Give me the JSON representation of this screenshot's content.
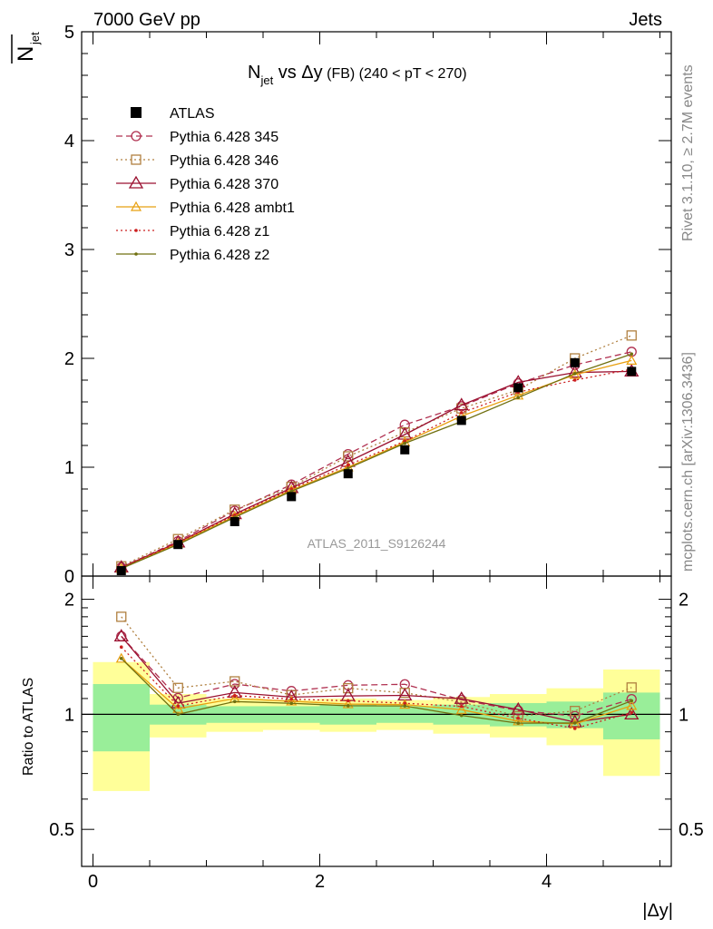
{
  "header": {
    "left": "7000 GeV pp",
    "right": "Jets"
  },
  "side_labels": {
    "rivet": "Rivet 3.1.10, ≥ 2.7M events",
    "mcplots": "mcplots.cern.ch [arXiv:1306.3436]"
  },
  "watermark": "ATLAS_2011_S9126244",
  "chart_data": {
    "type": "line",
    "title_main": "N",
    "title_sub": "jet",
    "title_mid": " vs Δy",
    "title_small": " (FB)",
    "title_tail": " (240 < pT < 270)",
    "ylabel_main": "N",
    "ylabel_sub": "jet",
    "xlabel": "|Δy|",
    "ratio_ylabel": "Ratio to ATLAS",
    "xlim": [
      -0.1,
      5.1
    ],
    "ylim": [
      0,
      5
    ],
    "ratio_ylim": [
      0.4,
      2.3
    ],
    "x_ticks": [
      "0",
      "2",
      "4"
    ],
    "y_ticks": [
      "0",
      "1",
      "2",
      "3",
      "4",
      "5"
    ],
    "ratio_ticks": [
      "0.5",
      "1",
      "2"
    ],
    "x": [
      0.25,
      0.75,
      1.25,
      1.75,
      2.25,
      2.75,
      3.25,
      3.75,
      4.25,
      4.75
    ],
    "bin_edges": [
      0,
      0.5,
      1,
      1.5,
      2,
      2.5,
      3,
      3.5,
      4,
      4.5,
      5
    ],
    "data": {
      "name": "ATLAS",
      "values": [
        0.05,
        0.29,
        0.5,
        0.73,
        0.94,
        1.16,
        1.43,
        1.73,
        1.96,
        1.88
      ],
      "band_green": [
        0.2,
        0.06,
        0.05,
        0.05,
        0.06,
        0.05,
        0.06,
        0.07,
        0.08,
        0.14
      ],
      "band_yellow": [
        0.37,
        0.13,
        0.1,
        0.09,
        0.1,
        0.09,
        0.11,
        0.13,
        0.17,
        0.31
      ]
    },
    "series": [
      {
        "name": "Pythia 6.428 345",
        "color": "#b03050",
        "dash": "7,4",
        "marker": "circle",
        "values": [
          0.08,
          0.32,
          0.6,
          0.84,
          1.12,
          1.39,
          1.56,
          1.77,
          1.94,
          2.06
        ]
      },
      {
        "name": "Pythia 6.428 346",
        "color": "#b08040",
        "dash": "2,3",
        "marker": "square",
        "values": [
          0.09,
          0.34,
          0.61,
          0.82,
          1.1,
          1.32,
          1.54,
          1.71,
          2.0,
          2.21
        ]
      },
      {
        "name": "Pythia 6.428 370",
        "color": "#9a1030",
        "dash": "",
        "marker": "triangle",
        "values": [
          0.08,
          0.31,
          0.57,
          0.81,
          1.05,
          1.3,
          1.57,
          1.78,
          1.87,
          1.88
        ]
      },
      {
        "name": "Pythia 6.428 ambt1",
        "color": "#e8a010",
        "dash": "",
        "marker": "triangle-small",
        "values": [
          0.07,
          0.3,
          0.55,
          0.79,
          1.0,
          1.23,
          1.47,
          1.66,
          1.85,
          1.98
        ]
      },
      {
        "name": "Pythia 6.428 z1",
        "color": "#cc2020",
        "dash": "2,3",
        "marker": "dot",
        "values": [
          0.075,
          0.305,
          0.56,
          0.8,
          1.02,
          1.24,
          1.5,
          1.69,
          1.8,
          1.9
        ]
      },
      {
        "name": "Pythia 6.428 z2",
        "color": "#707010",
        "dash": "",
        "marker": "dot",
        "values": [
          0.07,
          0.29,
          0.54,
          0.78,
          0.99,
          1.22,
          1.42,
          1.64,
          1.86,
          2.04
        ]
      }
    ]
  }
}
